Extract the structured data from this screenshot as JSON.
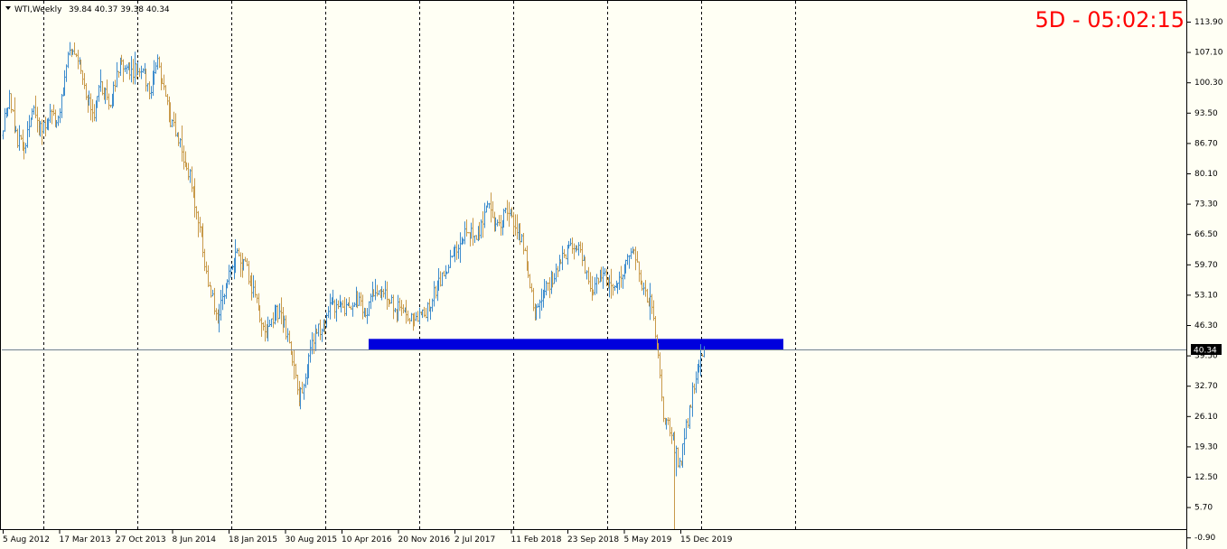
{
  "header": {
    "symbol_timeframe": "WTI,Weekly",
    "ohlc": "39.84 40.37 39.38 40.34"
  },
  "timer": {
    "text": "5D - 05:02:15",
    "color": "#ff0000"
  },
  "current_price_label": "40.34",
  "colors": {
    "background": "#fffff4",
    "bull_bar": "#3d8ccd",
    "bear_bar": "#c89a4a",
    "zone": "#0000dd",
    "price_line": "#708090",
    "price_tag_bg": "#000000",
    "timer": "#ff0000"
  },
  "chart_data": {
    "type": "ohlc",
    "symbol": "WTI",
    "timeframe": "Weekly",
    "yticks": [
      "113.90",
      "107.10",
      "100.30",
      "93.50",
      "86.70",
      "80.10",
      "73.30",
      "66.50",
      "59.70",
      "53.10",
      "46.30",
      "39.50",
      "32.70",
      "26.10",
      "19.30",
      "12.50",
      "5.70",
      "-0.90"
    ],
    "xticks": [
      "5 Aug 2012",
      "17 Mar 2013",
      "27 Oct 2013",
      "8 Jun 2014",
      "18 Jan 2015",
      "30 Aug 2015",
      "10 Apr 2016",
      "20 Nov 2016",
      "2 Jul 2017",
      "11 Feb 2018",
      "23 Sep 2018",
      "5 May 2019",
      "15 Dec 2019"
    ],
    "ylim": [
      -0.9,
      116.5
    ],
    "grid_vertical": true,
    "grid_horizontal": false,
    "current_price": 40.34,
    "support_zone": {
      "low": 40.3,
      "high": 42.8,
      "from": "10 Apr 2016",
      "to": "week 41 after 15 Dec 2019"
    },
    "path": [
      [
        0,
        91
      ],
      [
        4,
        97
      ],
      [
        8,
        88
      ],
      [
        13,
        86
      ],
      [
        19,
        95
      ],
      [
        24,
        89
      ],
      [
        29,
        94
      ],
      [
        34,
        91
      ],
      [
        37,
        100
      ],
      [
        41,
        108
      ],
      [
        46,
        105
      ],
      [
        52,
        97
      ],
      [
        56,
        93
      ],
      [
        60,
        100
      ],
      [
        66,
        96
      ],
      [
        72,
        104
      ],
      [
        80,
        103
      ],
      [
        86,
        104
      ],
      [
        90,
        98
      ],
      [
        95,
        105
      ],
      [
        103,
        92
      ],
      [
        111,
        84
      ],
      [
        115,
        79
      ],
      [
        122,
        65
      ],
      [
        126,
        55
      ],
      [
        132,
        48
      ],
      [
        138,
        56
      ],
      [
        144,
        62
      ],
      [
        150,
        58
      ],
      [
        157,
        50
      ],
      [
        162,
        43
      ],
      [
        167,
        49
      ],
      [
        172,
        47
      ],
      [
        177,
        40
      ],
      [
        182,
        30
      ],
      [
        186,
        33
      ],
      [
        190,
        42
      ],
      [
        196,
        46
      ],
      [
        202,
        51
      ],
      [
        209,
        49
      ],
      [
        217,
        52
      ],
      [
        223,
        48
      ],
      [
        228,
        53
      ],
      [
        234,
        53
      ],
      [
        240,
        50
      ],
      [
        247,
        49
      ],
      [
        252,
        48
      ],
      [
        257,
        47
      ],
      [
        264,
        52
      ],
      [
        271,
        57
      ],
      [
        278,
        62
      ],
      [
        285,
        67
      ],
      [
        291,
        65
      ],
      [
        298,
        73
      ],
      [
        304,
        68
      ],
      [
        311,
        72
      ],
      [
        318,
        66
      ],
      [
        323,
        58
      ],
      [
        327,
        48
      ],
      [
        333,
        54
      ],
      [
        341,
        58
      ],
      [
        348,
        64
      ],
      [
        355,
        62
      ],
      [
        362,
        53
      ],
      [
        368,
        57
      ],
      [
        375,
        55
      ],
      [
        382,
        58
      ],
      [
        388,
        64
      ],
      [
        392,
        55
      ],
      [
        398,
        51
      ],
      [
        402,
        42
      ],
      [
        406,
        25
      ],
      [
        411,
        22
      ],
      [
        416,
        14
      ],
      [
        421,
        25
      ],
      [
        426,
        35
      ],
      [
        431,
        40
      ]
    ]
  }
}
